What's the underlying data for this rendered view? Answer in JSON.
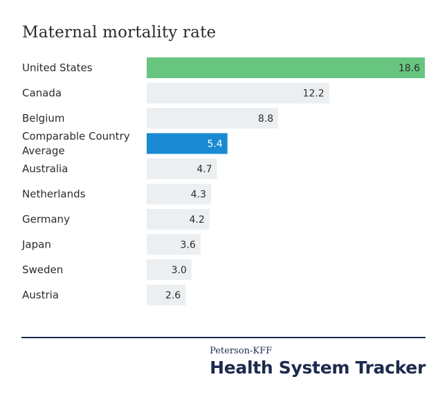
{
  "chart_data": {
    "type": "bar",
    "orientation": "horizontal",
    "title": "Maternal mortality rate",
    "categories": [
      "United States",
      "Canada",
      "Belgium",
      "Comparable Country Average",
      "Australia",
      "Netherlands",
      "Germany",
      "Japan",
      "Sweden",
      "Austria"
    ],
    "category_lines": [
      [
        "United States"
      ],
      [
        "Canada"
      ],
      [
        "Belgium"
      ],
      [
        "Comparable Country",
        "Average"
      ],
      [
        "Australia"
      ],
      [
        "Netherlands"
      ],
      [
        "Germany"
      ],
      [
        "Japan"
      ],
      [
        "Sweden"
      ],
      [
        "Austria"
      ]
    ],
    "values": [
      18.6,
      12.2,
      8.8,
      5.4,
      4.7,
      4.3,
      4.2,
      3.6,
      3.0,
      2.6
    ],
    "value_labels": [
      "18.6",
      "12.2",
      "8.8",
      "5.4",
      "4.7",
      "4.3",
      "4.2",
      "3.6",
      "3.0",
      "2.6"
    ],
    "bar_colors": [
      "#68c57f",
      "#eceff1",
      "#eceff1",
      "#1a8ad4",
      "#eceff1",
      "#eceff1",
      "#eceff1",
      "#eceff1",
      "#eceff1",
      "#eceff1"
    ],
    "value_label_colors": [
      "#2b2b2b",
      "#2b2b2b",
      "#2b2b2b",
      "#ffffff",
      "#2b2b2b",
      "#2b2b2b",
      "#2b2b2b",
      "#2b2b2b",
      "#2b2b2b",
      "#2b2b2b"
    ],
    "xlim": [
      0,
      18.6
    ],
    "grid": false,
    "legend": "none"
  },
  "branding": {
    "org": "Peterson-KFF",
    "product": "Health System Tracker"
  }
}
